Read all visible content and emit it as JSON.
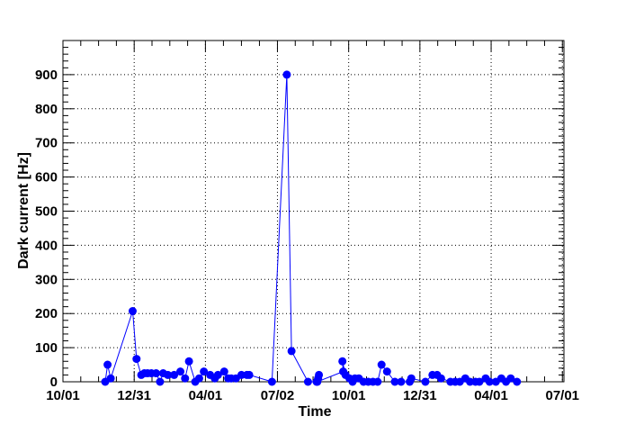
{
  "chart_data": {
    "type": "line",
    "title": "",
    "xlabel": "Time",
    "ylabel": "Dark current [Hz]",
    "ylim": [
      0,
      1000
    ],
    "y_ticks": [
      0,
      100,
      200,
      300,
      400,
      500,
      600,
      700,
      800,
      900
    ],
    "x_ticks": [
      {
        "value": 0,
        "label": "10/01"
      },
      {
        "value": 91,
        "label": "12/31"
      },
      {
        "value": 182,
        "label": "04/01"
      },
      {
        "value": 274,
        "label": "07/02"
      },
      {
        "value": 365,
        "label": "10/01"
      },
      {
        "value": 456,
        "label": "12/31"
      },
      {
        "value": 547,
        "label": "04/01"
      },
      {
        "value": 638,
        "label": "07/01"
      }
    ],
    "xlim": [
      0,
      640
    ],
    "grid": true,
    "colors": {
      "series": "#0000ff",
      "grid": "#000000"
    },
    "series": [
      {
        "name": "",
        "x": [
          54,
          57,
          61,
          89,
          94,
          100,
          104,
          108,
          113,
          119,
          124,
          128,
          134,
          142,
          150,
          156,
          161,
          169,
          174,
          180,
          188,
          194,
          198,
          206,
          211,
          215,
          221,
          228,
          235,
          238,
          267,
          286,
          292,
          313,
          324,
          327,
          326,
          325,
          358,
          357,
          361,
          366,
          370,
          373,
          378,
          384,
          390,
          396,
          402,
          407,
          414,
          424,
          432,
          443,
          445,
          463,
          472,
          478,
          483,
          495,
          501,
          507,
          514,
          520,
          527,
          532,
          540,
          545,
          553,
          560,
          566,
          572,
          580
        ],
        "y": [
          0,
          50,
          10,
          207,
          67,
          20,
          25,
          25,
          25,
          25,
          0,
          25,
          20,
          20,
          30,
          10,
          60,
          0,
          10,
          30,
          20,
          10,
          20,
          30,
          10,
          10,
          10,
          20,
          20,
          20,
          0,
          900,
          90,
          0,
          0,
          20,
          10,
          0,
          30,
          60,
          20,
          10,
          0,
          10,
          10,
          0,
          0,
          0,
          0,
          50,
          30,
          0,
          0,
          0,
          10,
          0,
          20,
          20,
          10,
          0,
          0,
          0,
          10,
          0,
          0,
          0,
          10,
          0,
          0,
          10,
          0,
          10,
          0
        ]
      }
    ]
  }
}
